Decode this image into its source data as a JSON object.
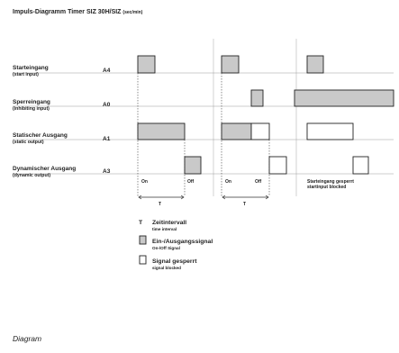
{
  "title": "Impuls-Diagramm Timer SIZ 30H/SIZ",
  "title_unit": "(sec/min)",
  "rows": [
    {
      "label": "Starteingang",
      "sublabel": "(start input)",
      "code": "A4"
    },
    {
      "label": "Sperreingang",
      "sublabel": "(inhibiting input)",
      "code": "A0"
    },
    {
      "label": "Statischer Ausgang",
      "sublabel": "(static output)",
      "code": "A1"
    },
    {
      "label": "Dynamischer Ausgang",
      "sublabel": "(dynamic output)",
      "code": "A3"
    }
  ],
  "phase_labels": {
    "on_1": "On",
    "off_1": "Off",
    "on_2": "On",
    "off_2": "Off",
    "t_1": "T",
    "t_2": "T",
    "blocked_main": "Starteingang gesperrt",
    "blocked_sub": "startinput blocked"
  },
  "legend": [
    {
      "symbol": "T",
      "label": "Zeitintervall",
      "sublabel": "time interval"
    },
    {
      "symbol": "grey-box",
      "label": "Ein-/Ausgangssignal",
      "sublabel": "On-/Off Signal"
    },
    {
      "symbol": "white-box",
      "label": "Signal gesperrt",
      "sublabel": "signal blocked"
    }
  ],
  "caption": "Diagram",
  "colors": {
    "active_signal": "#c9c9c9",
    "blocked_signal": "#ffffff",
    "lines": "#222222"
  }
}
